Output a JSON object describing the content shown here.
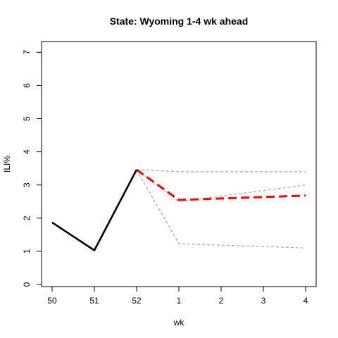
{
  "chart_data": {
    "type": "line",
    "title": "State: Wyoming 1-4 wk ahead",
    "xlabel": "wk",
    "ylabel": "ILI%",
    "x_ticks": [
      "50",
      "51",
      "52",
      "1",
      "2",
      "3",
      "4"
    ],
    "y_ticks": [
      "0",
      "1",
      "2",
      "3",
      "4",
      "5",
      "6",
      "7"
    ],
    "ylim": [
      0,
      7
    ],
    "grid": false,
    "series": [
      {
        "role": "observed",
        "color": "#000000",
        "style": "solid",
        "points": [
          [
            "50",
            1.87
          ],
          [
            "51",
            1.03
          ],
          [
            "52",
            3.46
          ]
        ]
      },
      {
        "role": "forecast",
        "color": "#ff0000",
        "style": "dashed",
        "points": [
          [
            "52",
            3.46
          ],
          [
            "1",
            2.55
          ],
          [
            "4",
            2.68
          ]
        ]
      },
      {
        "role": "upper-bound",
        "color": "#aaaaaa",
        "style": "dashed",
        "points": [
          [
            "52",
            3.46
          ],
          [
            "1",
            3.4
          ],
          [
            "4",
            3.4
          ]
        ]
      },
      {
        "role": "mid-bound",
        "color": "#aaaaaa",
        "style": "dashed",
        "points": [
          [
            "52",
            3.46
          ],
          [
            "1",
            2.5
          ],
          [
            "4",
            3.0
          ]
        ]
      },
      {
        "role": "lower-bound",
        "color": "#aaaaaa",
        "style": "dashed",
        "points": [
          [
            "52",
            3.46
          ],
          [
            "1",
            1.23
          ],
          [
            "4",
            1.1
          ]
        ]
      }
    ]
  }
}
